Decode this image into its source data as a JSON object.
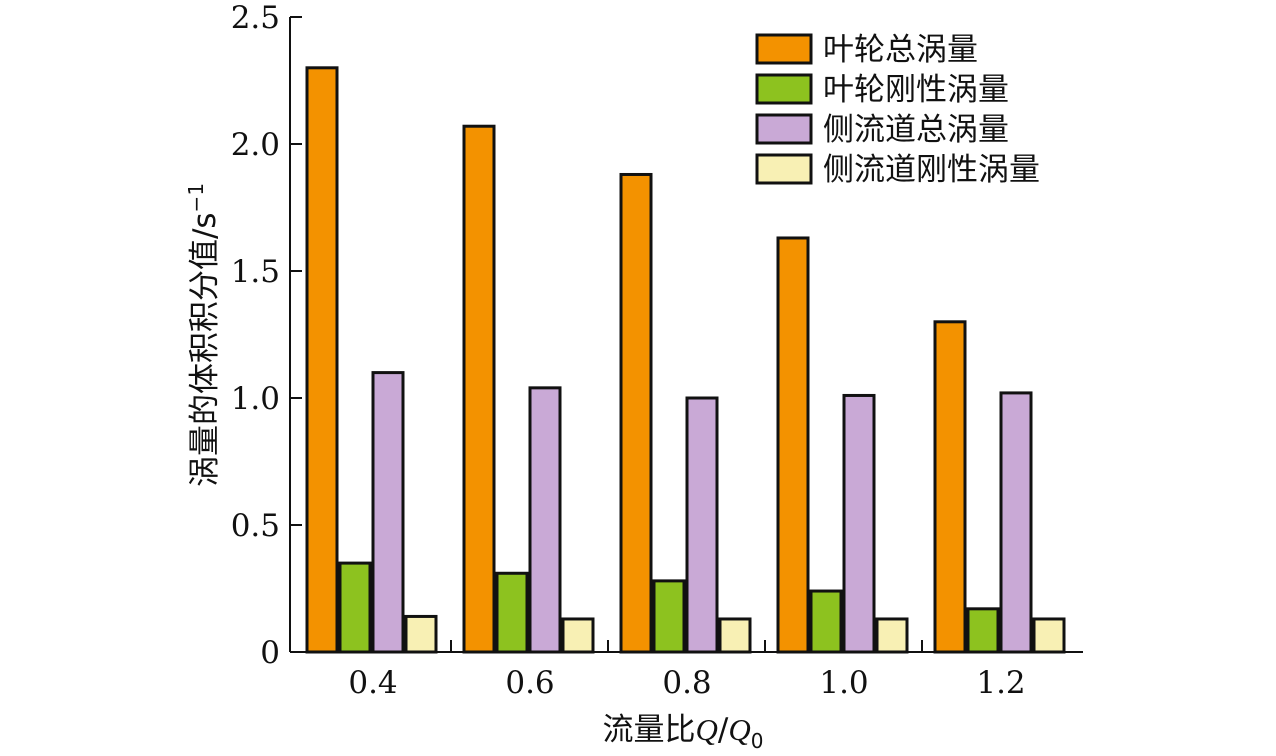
{
  "chart_data": {
    "type": "bar",
    "categories": [
      "0.4",
      "0.6",
      "0.8",
      "1.0",
      "1.2"
    ],
    "series": [
      {
        "name": "叶轮总涡量",
        "color": "#f39200",
        "values": [
          2.3,
          2.07,
          1.88,
          1.63,
          1.3
        ]
      },
      {
        "name": "叶轮刚性涡量",
        "color": "#8dc21f",
        "values": [
          0.35,
          0.31,
          0.28,
          0.24,
          0.17
        ]
      },
      {
        "name": "侧流道总涡量",
        "color": "#c9a9d6",
        "values": [
          1.1,
          1.04,
          1.0,
          1.01,
          1.02
        ]
      },
      {
        "name": "侧流道刚性涡量",
        "color": "#f8f0b4",
        "values": [
          0.14,
          0.13,
          0.13,
          0.13,
          0.13
        ]
      }
    ],
    "ylim": [
      0,
      2.5
    ],
    "yticks": [
      "0",
      "0.5",
      "1.0",
      "1.5",
      "2.0",
      "2.5"
    ],
    "ylabel": "涡量的体积积分值/s",
    "ylabel_sup": "−1",
    "xlabel_prefix": "流量比",
    "xlabel_q": "Q",
    "xlabel_slash": "/",
    "xlabel_q0": "Q",
    "xlabel_sub": "0",
    "legend_position": "top-right",
    "grid": false
  }
}
